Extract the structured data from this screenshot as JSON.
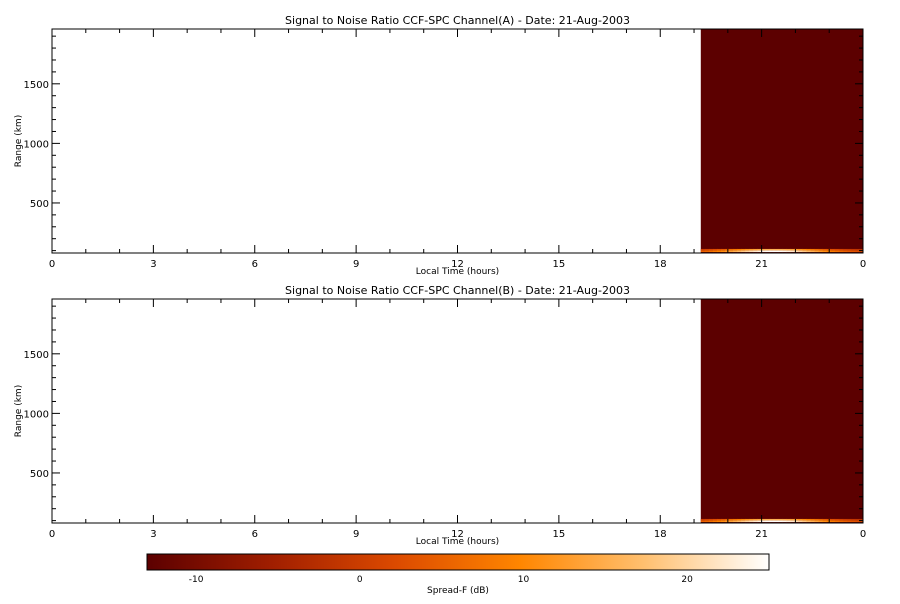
{
  "chart_data": [
    {
      "type": "heatmap",
      "title": "Signal to Noise Ratio CCF-SPC Channel(A) - Date: 21-Aug-2003",
      "xlabel": "Local Time (hours)",
      "ylabel": "Range (km)",
      "x_ticks": [
        "0",
        "3",
        "6",
        "9",
        "12",
        "15",
        "18",
        "21",
        "0"
      ],
      "y_ticks": [
        "500",
        "1000",
        "1500"
      ],
      "xlim": [
        0,
        24
      ],
      "ylim": [
        80,
        1960
      ],
      "data_start_hour": 19.2,
      "background_value_db": -13,
      "bright_layer": {
        "range_km_min": 80,
        "range_km_max": 120,
        "peak_value_db": 25
      }
    },
    {
      "type": "heatmap",
      "title": "Signal to Noise Ratio CCF-SPC Channel(B) - Date: 21-Aug-2003",
      "xlabel": "Local Time (hours)",
      "ylabel": "Range (km)",
      "x_ticks": [
        "0",
        "3",
        "6",
        "9",
        "12",
        "15",
        "18",
        "21",
        "0"
      ],
      "y_ticks": [
        "500",
        "1000",
        "1500"
      ],
      "xlim": [
        0,
        24
      ],
      "ylim": [
        80,
        1960
      ],
      "data_start_hour": 19.2,
      "background_value_db": -13,
      "bright_layer": {
        "range_km_min": 80,
        "range_km_max": 120,
        "peak_value_db": 25
      }
    }
  ],
  "colorbar": {
    "label": "Spread-F (dB)",
    "ticks": [
      "-10",
      "0",
      "10",
      "20"
    ],
    "range": [
      -13,
      25
    ],
    "colors": [
      "#5c0000",
      "#a01e00",
      "#dc4a00",
      "#ff8600",
      "#ffc070",
      "#ffffff"
    ]
  }
}
